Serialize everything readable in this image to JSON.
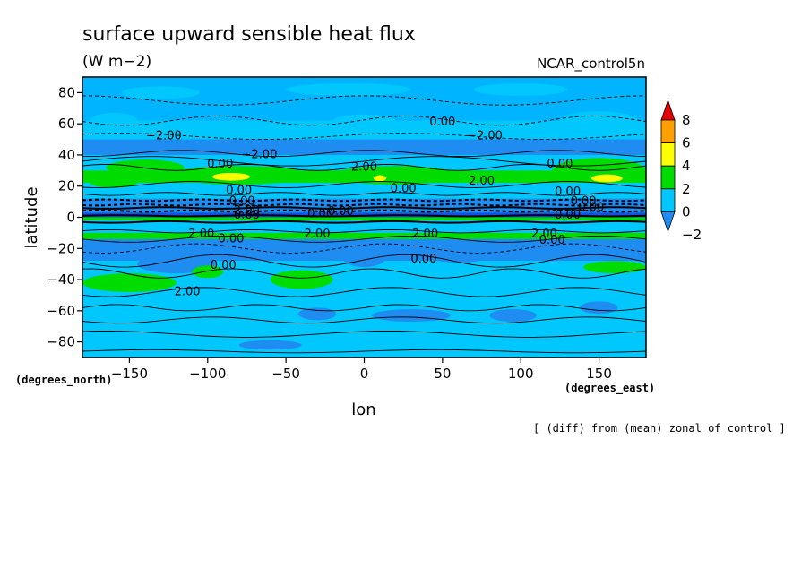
{
  "chart_data": {
    "type": "contour",
    "title": "surface upward sensible heat flux",
    "units": "(W m−2)",
    "dataset": "NCAR_control5n",
    "xlabel": "lon",
    "ylabel": "latitude",
    "x_unit_label": "(degrees_east)",
    "y_unit_label": "(degrees_north)",
    "footnote": "[ (diff) from (mean) zonal of control ]",
    "xlim": [
      -180,
      180
    ],
    "ylim": [
      -90,
      90
    ],
    "x_ticks": [
      {
        "value": -150,
        "label": "−150"
      },
      {
        "value": -100,
        "label": "−100"
      },
      {
        "value": -50,
        "label": "−50"
      },
      {
        "value": 0,
        "label": "0"
      },
      {
        "value": 50,
        "label": "50"
      },
      {
        "value": 100,
        "label": "100"
      },
      {
        "value": 150,
        "label": "150"
      }
    ],
    "y_ticks": [
      {
        "value": 80,
        "label": "80"
      },
      {
        "value": 60,
        "label": "60"
      },
      {
        "value": 40,
        "label": "40"
      },
      {
        "value": 20,
        "label": "20"
      },
      {
        "value": 0,
        "label": "0"
      },
      {
        "value": -20,
        "label": "−20"
      },
      {
        "value": -40,
        "label": "−40"
      },
      {
        "value": -60,
        "label": "−60"
      },
      {
        "value": -80,
        "label": "−80"
      }
    ],
    "colorbar": {
      "levels": [
        -2,
        0,
        2,
        4,
        6,
        8
      ],
      "labels": [
        "−2",
        "0",
        "2",
        "4",
        "6",
        "8"
      ],
      "colors": [
        "#1e8cf0",
        "#00c8ff",
        "#00dc00",
        "#ffff00",
        "#ffa000",
        "#e60000"
      ]
    },
    "contour_labels": [
      "0.00",
      "−2.00",
      "2.00"
    ],
    "colors": {
      "lt_minus2": "#1e8cf0",
      "minus2_0": "#00c8ff",
      "base_band": "#00b4ff",
      "0_2": "#00dc00",
      "2_4": "#ffff00",
      "4_6": "#ffa000",
      "gt_6": "#e60000",
      "strong_neg": "#1450e6"
    }
  }
}
